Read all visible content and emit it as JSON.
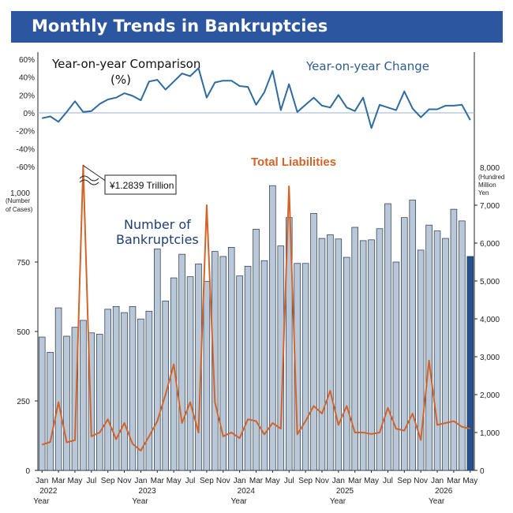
{
  "title": "Monthly Trends in Bankruptcies",
  "colors": {
    "title_bg": "#2c56a0",
    "bar_fill": "#b9c7d6",
    "bar_stroke": "#1f3350",
    "bar_last": "#27508f",
    "line_liab": "#d2642a",
    "line_yoy": "#2f6b9e"
  },
  "chart_data": {
    "type": "bar",
    "months": [
      "Jan",
      "Feb",
      "Mar",
      "Apr",
      "May",
      "Jun",
      "Jul",
      "Aug",
      "Sep",
      "Oct",
      "Nov",
      "Dec",
      "Jan",
      "Feb",
      "Mar",
      "Apr",
      "May",
      "Jun",
      "Jul",
      "Aug",
      "Sep",
      "Oct",
      "Nov",
      "Dec",
      "Jan",
      "Feb",
      "Mar",
      "Apr",
      "May",
      "Jun",
      "Jul",
      "Aug",
      "Sep",
      "Oct",
      "Nov",
      "Dec",
      "Jan",
      "Feb",
      "Mar",
      "Apr",
      "May",
      "Jun",
      "Jul",
      "Aug",
      "Sep",
      "Oct",
      "Nov",
      "Dec",
      "Jan",
      "Feb",
      "Mar",
      "Apr",
      "May"
    ],
    "x_tick_labels": [
      {
        "i": 0,
        "label": "Jan",
        "year": "2022"
      },
      {
        "i": 2,
        "label": "Mar"
      },
      {
        "i": 4,
        "label": "May"
      },
      {
        "i": 6,
        "label": "Jul"
      },
      {
        "i": 8,
        "label": "Sep"
      },
      {
        "i": 10,
        "label": "Nov"
      },
      {
        "i": 12,
        "label": "Jan",
        "year": "2023"
      },
      {
        "i": 14,
        "label": "Mar"
      },
      {
        "i": 16,
        "label": "May"
      },
      {
        "i": 18,
        "label": "Jul"
      },
      {
        "i": 20,
        "label": "Sep"
      },
      {
        "i": 22,
        "label": "Nov"
      },
      {
        "i": 24,
        "label": "Jan",
        "year": "2024"
      },
      {
        "i": 26,
        "label": "Mar"
      },
      {
        "i": 28,
        "label": "May"
      },
      {
        "i": 30,
        "label": "Jul"
      },
      {
        "i": 32,
        "label": "Sep"
      },
      {
        "i": 34,
        "label": "Nov"
      },
      {
        "i": 36,
        "label": "Jan",
        "year": "2025"
      },
      {
        "i": 38,
        "label": "Mar"
      },
      {
        "i": 40,
        "label": "May"
      },
      {
        "i": 42,
        "label": "Jul"
      },
      {
        "i": 44,
        "label": "Sep"
      },
      {
        "i": 46,
        "label": "Nov"
      },
      {
        "i": 48,
        "label": "Jan",
        "year": "2026"
      },
      {
        "i": 50,
        "label": "Mar"
      },
      {
        "i": 52,
        "label": "May"
      }
    ],
    "year_word": "Year",
    "bankruptcies": [
      480,
      425,
      585,
      483,
      515,
      540,
      495,
      490,
      580,
      590,
      568,
      590,
      545,
      573,
      797,
      610,
      693,
      778,
      697,
      743,
      680,
      788,
      770,
      803,
      700,
      735,
      868,
      755,
      1025,
      808,
      910,
      745,
      745,
      925,
      835,
      848,
      833,
      767,
      875,
      827,
      830,
      870,
      960,
      750,
      910,
      973,
      793,
      883,
      862,
      835,
      940,
      898,
      770
    ],
    "liabilities": [
      680,
      750,
      1800,
      740,
      800,
      8050,
      900,
      1000,
      1350,
      820,
      1250,
      700,
      520,
      900,
      1300,
      2000,
      2800,
      1250,
      1800,
      1000,
      7000,
      1800,
      900,
      1000,
      850,
      1350,
      1300,
      950,
      1250,
      1100,
      7500,
      950,
      1300,
      1700,
      1500,
      2100,
      1200,
      1700,
      1000,
      1000,
      960,
      1000,
      1650,
      1100,
      1050,
      1500,
      800,
      2900,
      1200,
      1250,
      1300,
      1150,
      1100
    ],
    "yoy": [
      -6,
      -4,
      -10,
      1,
      13,
      1,
      2,
      10,
      15,
      17,
      22,
      19,
      14,
      35,
      37,
      26,
      35,
      44,
      41,
      50,
      17,
      34,
      36,
      36,
      30,
      29,
      9,
      23,
      47,
      3,
      32,
      1,
      9,
      17,
      8,
      6,
      20,
      6,
      2,
      17,
      -17,
      9,
      6,
      3,
      24,
      5,
      -5,
      4,
      4,
      8,
      8,
      9,
      -8
    ],
    "left_axis": {
      "min": 0,
      "max": 1000,
      "ticks": [
        0,
        250,
        500,
        750
      ],
      "top_tick_label": "1,000",
      "unit_label": [
        "(Number",
        "of Cases)"
      ]
    },
    "right_axis": {
      "min": 0,
      "max": 8000,
      "ticks": [
        0,
        1000,
        2000,
        3000,
        4000,
        5000,
        6000,
        7000
      ],
      "tick_labels": [
        "0",
        "1,000",
        "2,000",
        "3,000",
        "4,000",
        "5,000",
        "6,000",
        "7,000"
      ],
      "top_tick_label": "8,000",
      "unit_label": [
        "(Hundred",
        "Million",
        "Yen"
      ]
    },
    "yoy_axis": {
      "min": -60,
      "max": 60,
      "ticks": [
        60,
        40,
        20,
        0,
        -20,
        -40,
        -60
      ],
      "tick_labels": [
        "60%",
        "40%",
        "20%",
        "0%",
        "-20%",
        "-40%",
        "-60%"
      ]
    },
    "annotations": {
      "yoy_comparison_line1": "Year-on-year Comparison",
      "yoy_comparison_line2": "(%)",
      "yoy_change": "Year-on-year Change",
      "total_liabilities": "Total Liabilities",
      "number_of_bankruptcies_line1": "Number of",
      "number_of_bankruptcies_line2": "Bankruptcies",
      "peak_callout": "¥1.2839 Trillion"
    }
  }
}
